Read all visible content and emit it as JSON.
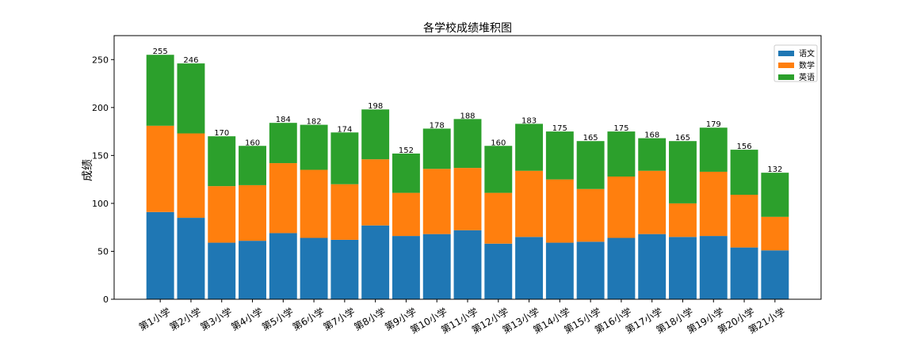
{
  "chart_data": {
    "type": "stacked_bar",
    "title": "各学校成绩堆积图",
    "y_label": "成绩",
    "categories": [
      "第1小学",
      "第2小学",
      "第3小学",
      "第4小学",
      "第5小学",
      "第6小学",
      "第7小学",
      "第8小学",
      "第9小学",
      "第10小学",
      "第11小学",
      "第12小学",
      "第13小学",
      "第14小学",
      "第15小学",
      "第16小学",
      "第17小学",
      "第18小学",
      "第19小学",
      "第20小学",
      "第21小学"
    ],
    "series": [
      {
        "name": "语文",
        "color": "#1f77b4",
        "values": [
          91,
          85,
          59,
          61,
          69,
          64,
          62,
          77,
          66,
          68,
          72,
          58,
          65,
          59,
          60,
          64,
          68,
          65,
          66,
          54,
          51
        ]
      },
      {
        "name": "数学",
        "color": "#ff7f0e",
        "values": [
          90,
          88,
          59,
          58,
          73,
          71,
          58,
          69,
          45,
          68,
          65,
          53,
          69,
          66,
          55,
          64,
          66,
          35,
          67,
          55,
          35
        ]
      },
      {
        "name": "英语",
        "color": "#2ca02c",
        "values": [
          74,
          73,
          52,
          41,
          42,
          47,
          54,
          52,
          41,
          42,
          51,
          49,
          49,
          50,
          50,
          47,
          34,
          65,
          46,
          47,
          46
        ]
      }
    ],
    "totals": [
      255,
      246,
      170,
      160,
      184,
      182,
      174,
      198,
      152,
      178,
      188,
      160,
      183,
      175,
      165,
      175,
      168,
      165,
      179,
      156,
      132
    ],
    "ylim": [
      0,
      275
    ],
    "yticks": [
      0,
      50,
      100,
      150,
      200,
      250
    ],
    "legend": "upper right"
  }
}
